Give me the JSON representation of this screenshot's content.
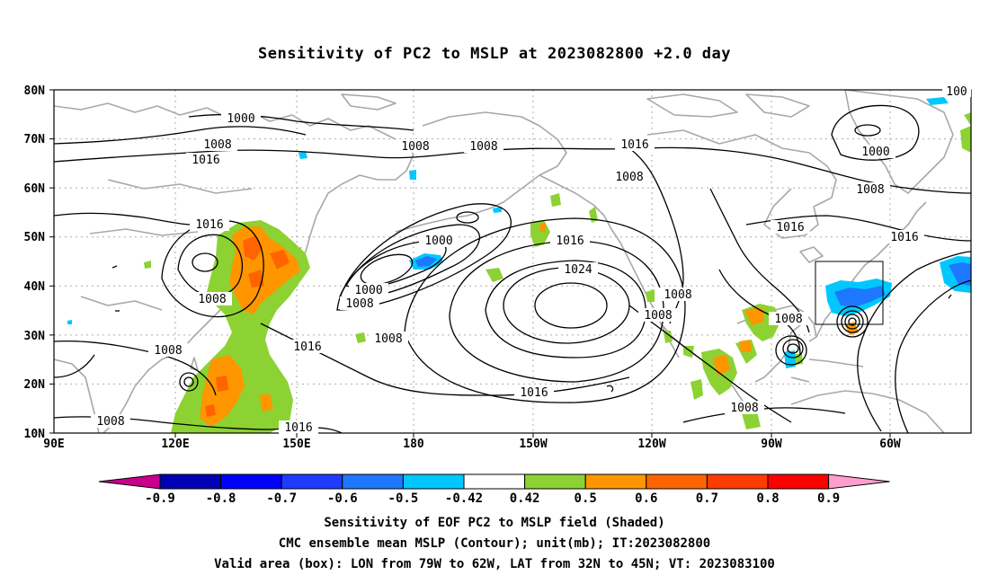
{
  "title": "Sensitivity of PC2 to MSLP at 2023082800 +2.0 day",
  "map": {
    "lat_labels": [
      "80N",
      "70N",
      "60N",
      "50N",
      "40N",
      "30N",
      "20N",
      "10N"
    ],
    "lon_labels": [
      "90E",
      "120E",
      "150E",
      "180",
      "150W",
      "120W",
      "90W",
      "60W"
    ],
    "contour_labels": [
      "1000",
      "1008",
      "1016",
      "1008",
      "1016",
      "1008",
      "1008",
      "1016",
      "1000",
      "1008",
      "1016",
      "1008",
      "1016",
      "1000",
      "1008",
      "1008",
      "1016",
      "1024",
      "1016",
      "1008",
      "1008",
      "1008",
      "1008",
      "1016",
      "1008",
      "1008",
      "1016",
      "1008",
      "100"
    ],
    "valid_box": {
      "lon_from": "79W",
      "lon_to": "62W",
      "lat_from": "32N",
      "lat_to": "45N"
    }
  },
  "colorbar": {
    "labels": [
      "-0.9",
      "-0.8",
      "-0.7",
      "-0.6",
      "-0.5",
      "-0.42",
      "0.42",
      "0.5",
      "0.6",
      "0.7",
      "0.8",
      "0.9"
    ],
    "colors": [
      "#0000b4",
      "#0000ff",
      "#1e3cff",
      "#1e78ff",
      "#00c8ff",
      "#ffffff",
      "#8cd232",
      "#ff9600",
      "#ff6400",
      "#ff3c00",
      "#ff0000"
    ],
    "left_tip_color": "#c8008c",
    "right_tip_color": "#ff9ecf"
  },
  "captions": {
    "line1": "Sensitivity of EOF PC2 to MSLP field (Shaded)",
    "line2": "CMC ensemble mean MSLP (Contour); unit(mb); IT:2023082800",
    "line3": "Valid area (box): LON from 79W to 62W, LAT from 32N to 45N; VT: 2023083100"
  }
}
